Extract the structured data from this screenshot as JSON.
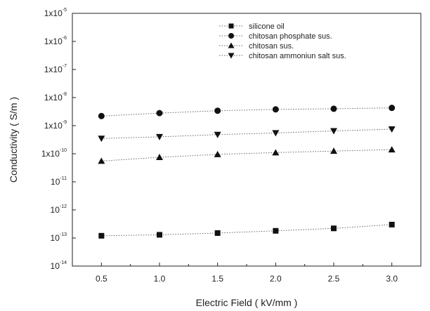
{
  "chart_data": {
    "type": "scatter",
    "xlabel": "Electric  Field ( kV/mm )",
    "ylabel": "Conductivity ( S/m )",
    "x": [
      0.5,
      1.0,
      1.5,
      2.0,
      2.5,
      3.0
    ],
    "xlim": [
      0.25,
      3.25
    ],
    "ylim": [
      1e-14,
      1e-05
    ],
    "yscale": "log",
    "x_tick_labels": [
      "0.5",
      "1.0",
      "1.5",
      "2.0",
      "2.5",
      "3.0"
    ],
    "y_tick_labels": [
      {
        "base": "10",
        "exp": "-14"
      },
      {
        "base": "10",
        "exp": "-13"
      },
      {
        "base": "10",
        "exp": "-12"
      },
      {
        "base": "10",
        "exp": "-11"
      },
      {
        "base": "1x10",
        "exp": "-10"
      },
      {
        "base": "1x10",
        "exp": "-9"
      },
      {
        "base": "1x10",
        "exp": "-8"
      },
      {
        "base": "1x10",
        "exp": "-7"
      },
      {
        "base": "1x10",
        "exp": "-6"
      },
      {
        "base": "1x10",
        "exp": "-5"
      }
    ],
    "legend_position": "top-right",
    "grid": false,
    "series": [
      {
        "name": "silicone oil",
        "marker": "square",
        "color": "#111111",
        "values": [
          1.2e-13,
          1.3e-13,
          1.5e-13,
          1.8e-13,
          2.2e-13,
          3e-13
        ]
      },
      {
        "name": "chitosan phosphate sus.",
        "marker": "circle",
        "color": "#111111",
        "values": [
          2.2e-09,
          2.8e-09,
          3.4e-09,
          3.8e-09,
          4e-09,
          4.3e-09
        ]
      },
      {
        "name": "chitosan sus.",
        "marker": "triangle-up",
        "color": "#111111",
        "values": [
          5.5e-11,
          7.5e-11,
          9.5e-11,
          1.1e-10,
          1.25e-10,
          1.4e-10
        ]
      },
      {
        "name": "chitosan ammoniun salt sus.",
        "marker": "triangle-down",
        "color": "#111111",
        "values": [
          3.5e-10,
          4e-10,
          4.8e-10,
          5.5e-10,
          6.5e-10,
          7.5e-10
        ]
      }
    ]
  }
}
